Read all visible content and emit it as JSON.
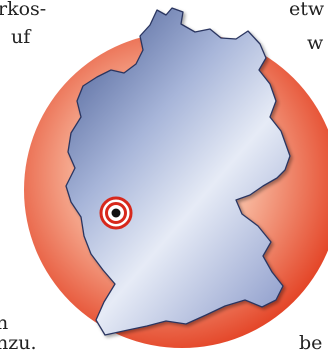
{
  "text_fragments": {
    "top_left_line1": "rkos-",
    "top_left_line2": "uf",
    "top_right_line1": "etw",
    "top_right_line2": "w",
    "bottom_left_line1": "n",
    "bottom_left_line2": "nzu.",
    "bottom_right_line1": "be"
  },
  "map": {
    "country": "Germany",
    "marker": {
      "type": "location-target",
      "approx_region": "Rhineland"
    },
    "colors": {
      "circle_outer": "#e23a1c",
      "circle_inner": "#fde6dc",
      "land_dark": "#4b5f96",
      "land_light": "#e6ebf6",
      "border": "#2a3560",
      "marker_red": "#d7281c",
      "marker_dot": "#111111"
    }
  }
}
